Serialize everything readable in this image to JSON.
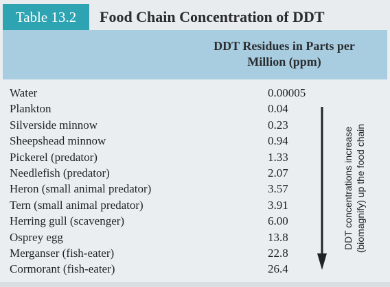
{
  "table_tag": "Table 13.2",
  "title": "Food Chain Concentration of DDT",
  "column_header": "DDT Residues in Parts per Million (ppm)",
  "rows": [
    {
      "label": "Water",
      "value": "0.00005"
    },
    {
      "label": "Plankton",
      "value": "0.04"
    },
    {
      "label": "Silverside minnow",
      "value": "0.23"
    },
    {
      "label": "Sheepshead minnow",
      "value": "0.94"
    },
    {
      "label": "Pickerel (predator)",
      "value": "1.33"
    },
    {
      "label": "Needlefish (predator)",
      "value": "2.07"
    },
    {
      "label": "Heron (small animal predator)",
      "value": "3.57"
    },
    {
      "label": "Tern (small animal predator)",
      "value": "3.91"
    },
    {
      "label": "Herring gull (scavenger)",
      "value": "6.00"
    },
    {
      "label": "Osprey egg",
      "value": "13.8"
    },
    {
      "label": "Merganser (fish-eater)",
      "value": "22.8"
    },
    {
      "label": "Cormorant (fish-eater)",
      "value": "26.4"
    }
  ],
  "side_note": "DDT concentrations increase (biomagnify) up the food chain",
  "colors": {
    "tag_background": "#2ea3b1",
    "header_band": "#a9cde0",
    "body_background": "#eaeef0",
    "text": "#1f2226"
  }
}
